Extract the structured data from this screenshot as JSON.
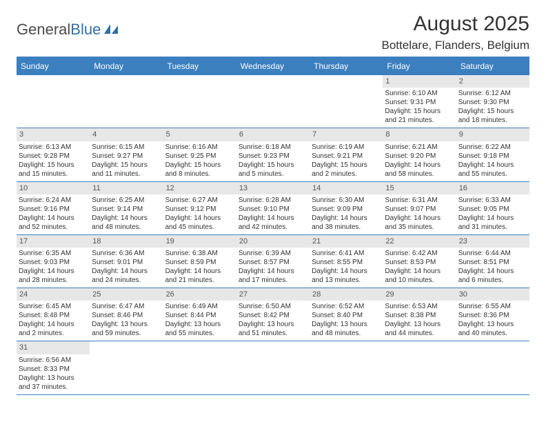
{
  "logo": {
    "text_general": "General",
    "text_blue": "Blue"
  },
  "header": {
    "month_title": "August 2025",
    "location": "Bottelare, Flanders, Belgium"
  },
  "colors": {
    "accent": "#3b7fbf",
    "daynum_bg": "#e7e7e7",
    "text": "#333333"
  },
  "dow": [
    "Sunday",
    "Monday",
    "Tuesday",
    "Wednesday",
    "Thursday",
    "Friday",
    "Saturday"
  ],
  "weeks": [
    [
      null,
      null,
      null,
      null,
      null,
      {
        "n": "1",
        "sunrise": "Sunrise: 6:10 AM",
        "sunset": "Sunset: 9:31 PM",
        "day1": "Daylight: 15 hours",
        "day2": "and 21 minutes."
      },
      {
        "n": "2",
        "sunrise": "Sunrise: 6:12 AM",
        "sunset": "Sunset: 9:30 PM",
        "day1": "Daylight: 15 hours",
        "day2": "and 18 minutes."
      }
    ],
    [
      {
        "n": "3",
        "sunrise": "Sunrise: 6:13 AM",
        "sunset": "Sunset: 9:28 PM",
        "day1": "Daylight: 15 hours",
        "day2": "and 15 minutes."
      },
      {
        "n": "4",
        "sunrise": "Sunrise: 6:15 AM",
        "sunset": "Sunset: 9:27 PM",
        "day1": "Daylight: 15 hours",
        "day2": "and 11 minutes."
      },
      {
        "n": "5",
        "sunrise": "Sunrise: 6:16 AM",
        "sunset": "Sunset: 9:25 PM",
        "day1": "Daylight: 15 hours",
        "day2": "and 8 minutes."
      },
      {
        "n": "6",
        "sunrise": "Sunrise: 6:18 AM",
        "sunset": "Sunset: 9:23 PM",
        "day1": "Daylight: 15 hours",
        "day2": "and 5 minutes."
      },
      {
        "n": "7",
        "sunrise": "Sunrise: 6:19 AM",
        "sunset": "Sunset: 9:21 PM",
        "day1": "Daylight: 15 hours",
        "day2": "and 2 minutes."
      },
      {
        "n": "8",
        "sunrise": "Sunrise: 6:21 AM",
        "sunset": "Sunset: 9:20 PM",
        "day1": "Daylight: 14 hours",
        "day2": "and 58 minutes."
      },
      {
        "n": "9",
        "sunrise": "Sunrise: 6:22 AM",
        "sunset": "Sunset: 9:18 PM",
        "day1": "Daylight: 14 hours",
        "day2": "and 55 minutes."
      }
    ],
    [
      {
        "n": "10",
        "sunrise": "Sunrise: 6:24 AM",
        "sunset": "Sunset: 9:16 PM",
        "day1": "Daylight: 14 hours",
        "day2": "and 52 minutes."
      },
      {
        "n": "11",
        "sunrise": "Sunrise: 6:25 AM",
        "sunset": "Sunset: 9:14 PM",
        "day1": "Daylight: 14 hours",
        "day2": "and 48 minutes."
      },
      {
        "n": "12",
        "sunrise": "Sunrise: 6:27 AM",
        "sunset": "Sunset: 9:12 PM",
        "day1": "Daylight: 14 hours",
        "day2": "and 45 minutes."
      },
      {
        "n": "13",
        "sunrise": "Sunrise: 6:28 AM",
        "sunset": "Sunset: 9:10 PM",
        "day1": "Daylight: 14 hours",
        "day2": "and 42 minutes."
      },
      {
        "n": "14",
        "sunrise": "Sunrise: 6:30 AM",
        "sunset": "Sunset: 9:09 PM",
        "day1": "Daylight: 14 hours",
        "day2": "and 38 minutes."
      },
      {
        "n": "15",
        "sunrise": "Sunrise: 6:31 AM",
        "sunset": "Sunset: 9:07 PM",
        "day1": "Daylight: 14 hours",
        "day2": "and 35 minutes."
      },
      {
        "n": "16",
        "sunrise": "Sunrise: 6:33 AM",
        "sunset": "Sunset: 9:05 PM",
        "day1": "Daylight: 14 hours",
        "day2": "and 31 minutes."
      }
    ],
    [
      {
        "n": "17",
        "sunrise": "Sunrise: 6:35 AM",
        "sunset": "Sunset: 9:03 PM",
        "day1": "Daylight: 14 hours",
        "day2": "and 28 minutes."
      },
      {
        "n": "18",
        "sunrise": "Sunrise: 6:36 AM",
        "sunset": "Sunset: 9:01 PM",
        "day1": "Daylight: 14 hours",
        "day2": "and 24 minutes."
      },
      {
        "n": "19",
        "sunrise": "Sunrise: 6:38 AM",
        "sunset": "Sunset: 8:59 PM",
        "day1": "Daylight: 14 hours",
        "day2": "and 21 minutes."
      },
      {
        "n": "20",
        "sunrise": "Sunrise: 6:39 AM",
        "sunset": "Sunset: 8:57 PM",
        "day1": "Daylight: 14 hours",
        "day2": "and 17 minutes."
      },
      {
        "n": "21",
        "sunrise": "Sunrise: 6:41 AM",
        "sunset": "Sunset: 8:55 PM",
        "day1": "Daylight: 14 hours",
        "day2": "and 13 minutes."
      },
      {
        "n": "22",
        "sunrise": "Sunrise: 6:42 AM",
        "sunset": "Sunset: 8:53 PM",
        "day1": "Daylight: 14 hours",
        "day2": "and 10 minutes."
      },
      {
        "n": "23",
        "sunrise": "Sunrise: 6:44 AM",
        "sunset": "Sunset: 8:51 PM",
        "day1": "Daylight: 14 hours",
        "day2": "and 6 minutes."
      }
    ],
    [
      {
        "n": "24",
        "sunrise": "Sunrise: 6:45 AM",
        "sunset": "Sunset: 8:48 PM",
        "day1": "Daylight: 14 hours",
        "day2": "and 2 minutes."
      },
      {
        "n": "25",
        "sunrise": "Sunrise: 6:47 AM",
        "sunset": "Sunset: 8:46 PM",
        "day1": "Daylight: 13 hours",
        "day2": "and 59 minutes."
      },
      {
        "n": "26",
        "sunrise": "Sunrise: 6:49 AM",
        "sunset": "Sunset: 8:44 PM",
        "day1": "Daylight: 13 hours",
        "day2": "and 55 minutes."
      },
      {
        "n": "27",
        "sunrise": "Sunrise: 6:50 AM",
        "sunset": "Sunset: 8:42 PM",
        "day1": "Daylight: 13 hours",
        "day2": "and 51 minutes."
      },
      {
        "n": "28",
        "sunrise": "Sunrise: 6:52 AM",
        "sunset": "Sunset: 8:40 PM",
        "day1": "Daylight: 13 hours",
        "day2": "and 48 minutes."
      },
      {
        "n": "29",
        "sunrise": "Sunrise: 6:53 AM",
        "sunset": "Sunset: 8:38 PM",
        "day1": "Daylight: 13 hours",
        "day2": "and 44 minutes."
      },
      {
        "n": "30",
        "sunrise": "Sunrise: 6:55 AM",
        "sunset": "Sunset: 8:36 PM",
        "day1": "Daylight: 13 hours",
        "day2": "and 40 minutes."
      }
    ],
    [
      {
        "n": "31",
        "sunrise": "Sunrise: 6:56 AM",
        "sunset": "Sunset: 8:33 PM",
        "day1": "Daylight: 13 hours",
        "day2": "and 37 minutes."
      },
      null,
      null,
      null,
      null,
      null,
      null
    ]
  ]
}
